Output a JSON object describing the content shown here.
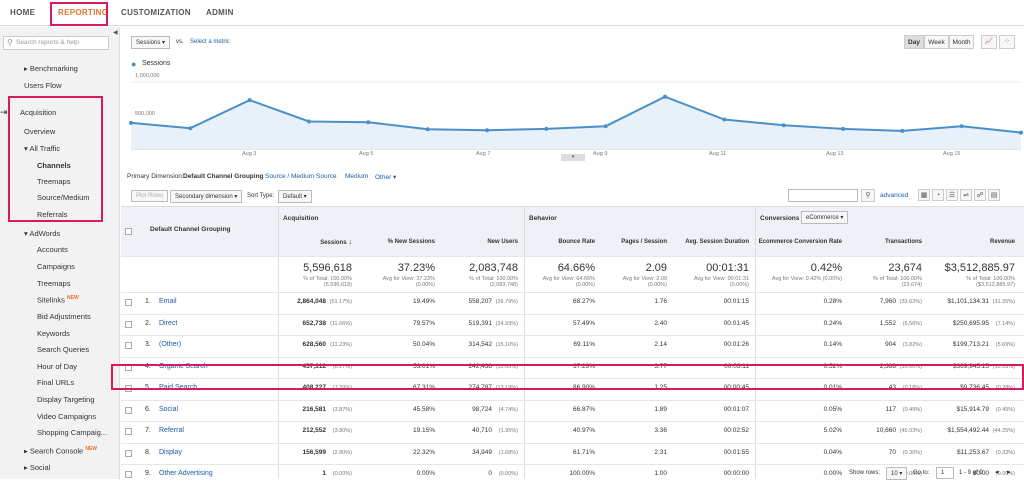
{
  "nav": {
    "home": "HOME",
    "reporting": "REPORTING",
    "customization": "CUSTOMIZATION",
    "admin": "ADMIN"
  },
  "sidebar": {
    "search_placeholder": "Search reports & help",
    "items": [
      "Benchmarking",
      "Users Flow",
      "Acquisition",
      "Overview",
      "All Traffic",
      "Channels",
      "Treemaps",
      "Source/Medium",
      "Referrals",
      "AdWords",
      "Accounts",
      "Campaigns",
      "Treemaps",
      "Sitelinks",
      "Bid Adjustments",
      "Keywords",
      "Search Queries",
      "Hour of Day",
      "Final URLs",
      "Display Targeting",
      "Video Campaigns",
      "Shopping Campaig...",
      "Search Console",
      "Social"
    ],
    "new_badge": "NEW"
  },
  "chart": {
    "metric_select": "Sessions",
    "vs": "vs.",
    "select_metric": "Select a metric",
    "day": "Day",
    "week": "Week",
    "month": "Month",
    "legend": "Sessions",
    "y_top": "1,000,000",
    "y_mid": "500,000",
    "x_labels": [
      "Aug 3",
      "Aug 5",
      "Aug 7",
      "Aug 9",
      "Aug 11",
      "Aug 13",
      "Aug 15"
    ]
  },
  "chart_data": {
    "type": "area",
    "series": [
      {
        "name": "Sessions",
        "values": [
          390000,
          310000,
          730000,
          410000,
          400000,
          295000,
          280000,
          300000,
          340000,
          780000,
          440000,
          355000,
          300000,
          270000,
          340000,
          245000
        ]
      }
    ],
    "ylim": [
      0,
      1000000
    ],
    "x_ticks": [
      "Aug 3",
      "Aug 5",
      "Aug 7",
      "Aug 9",
      "Aug 11",
      "Aug 13",
      "Aug 15"
    ]
  },
  "dims": {
    "label": "Primary Dimension:",
    "active": "Default Channel Grouping",
    "others": [
      "Source / Medium",
      "Source",
      "Medium",
      "Other ▾"
    ]
  },
  "controls": {
    "plot_rows": "Plot Rows",
    "secondary": "Secondary dimension ▾",
    "sort_type": "Sort Type:",
    "default": "Default ▾",
    "advanced": "advanced"
  },
  "table": {
    "col_group": "Default Channel Grouping",
    "acq": "Acquisition",
    "beh": "Behavior",
    "conv": "Conversions",
    "conv_sel": "eCommerce ▾",
    "headers": [
      "Sessions",
      "% New Sessions",
      "New Users",
      "Bounce Rate",
      "Pages / Session",
      "Avg. Session Duration",
      "Ecommerce Conversion Rate",
      "Transactions",
      "Revenue"
    ],
    "totals": [
      {
        "v": "5,596,618",
        "s": "% of Total: 100.00% (5,596,618)"
      },
      {
        "v": "37.23%",
        "s": "Avg for View: 37.23% (0.00%)"
      },
      {
        "v": "2,083,748",
        "s": "% of Total: 100.00% (2,083,748)"
      },
      {
        "v": "64.66%",
        "s": "Avg for View: 64.66% (0.00%)"
      },
      {
        "v": "2.09",
        "s": "Avg for View: 2.09 (0.00%)"
      },
      {
        "v": "00:01:31",
        "s": "Avg for View: 00:01:31 (0.00%)"
      },
      {
        "v": "0.42%",
        "s": "Avg for View: 0.42% (0.00%)"
      },
      {
        "v": "23,674",
        "s": "% of Total: 100.00% (23,674)"
      },
      {
        "v": "$3,512,885.97",
        "s": "% of Total: 100.00% ($3,512,885.97)"
      }
    ],
    "rows": [
      {
        "n": "1.",
        "ch": "Email",
        "c": [
          "2,864,048",
          "19.49%",
          "558,207",
          "68.27%",
          "1.76",
          "00:01:15",
          "0.28%",
          "7,960",
          "$1,101,134.31"
        ],
        "p": [
          "(51.17%)",
          "",
          "(26.79%)",
          "",
          "",
          "",
          "",
          "(33.62%)",
          "(31.35%)"
        ]
      },
      {
        "n": "2.",
        "ch": "Direct",
        "c": [
          "652,738",
          "79.57%",
          "519,391",
          "57.49%",
          "2.40",
          "00:01:45",
          "0.24%",
          "1,552",
          "$250,695.95"
        ],
        "p": [
          "(11.66%)",
          "",
          "(24.93%)",
          "",
          "",
          "",
          "",
          "(6.56%)",
          "(7.14%)"
        ]
      },
      {
        "n": "3.",
        "ch": "(Other)",
        "c": [
          "628,560",
          "50.04%",
          "314,542",
          "69.11%",
          "2.14",
          "00:01:26",
          "0.14%",
          "904",
          "$199,713.21"
        ],
        "p": [
          "(11.23%)",
          "",
          "(15.10%)",
          "",
          "",
          "",
          "",
          "(3.82%)",
          "(5.69%)"
        ]
      },
      {
        "n": "4.",
        "ch": "Organic Search",
        "c": [
          "457,312",
          "53.01%",
          "242,438",
          "37.29%",
          "3.77",
          "00:03:11",
          "0.52%",
          "2,368",
          "$369,945.15"
        ],
        "p": [
          "(8.17%)",
          "",
          "(11.63%)",
          "",
          "",
          "",
          "",
          "(10.00%)",
          "(10.53%)"
        ]
      },
      {
        "n": "5.",
        "ch": "Paid Search",
        "c": [
          "408,227",
          "67.31%",
          "274,787",
          "86.90%",
          "1.25",
          "00:00:45",
          "0.01%",
          "43",
          "$9,736.45"
        ],
        "p": [
          "(7.29%)",
          "",
          "(13.19%)",
          "",
          "",
          "",
          "",
          "(0.18%)",
          "(0.28%)"
        ]
      },
      {
        "n": "6.",
        "ch": "Social",
        "c": [
          "216,581",
          "45.58%",
          "98,724",
          "66.87%",
          "1.89",
          "00:01:07",
          "0.05%",
          "117",
          "$15,914.79"
        ],
        "p": [
          "(3.87%)",
          "",
          "(4.74%)",
          "",
          "",
          "",
          "",
          "(0.49%)",
          "(0.45%)"
        ]
      },
      {
        "n": "7.",
        "ch": "Referral",
        "c": [
          "212,552",
          "19.15%",
          "40,710",
          "40.97%",
          "3.36",
          "00:02:52",
          "5.02%",
          "10,660",
          "$1,554,492.44"
        ],
        "p": [
          "(3.80%)",
          "",
          "(1.95%)",
          "",
          "",
          "",
          "",
          "(45.03%)",
          "(44.25%)"
        ]
      },
      {
        "n": "8.",
        "ch": "Display",
        "c": [
          "156,599",
          "22.32%",
          "34,949",
          "61.71%",
          "2.31",
          "00:01:55",
          "0.04%",
          "70",
          "$11,253.67"
        ],
        "p": [
          "(2.80%)",
          "",
          "(1.68%)",
          "",
          "",
          "",
          "",
          "(0.30%)",
          "(0.32%)"
        ]
      },
      {
        "n": "9.",
        "ch": "Other Advertising",
        "c": [
          "1",
          "0.00%",
          "0",
          "100.00%",
          "1.00",
          "00:00:00",
          "0.00%",
          "0",
          "$0.00"
        ],
        "p": [
          "(0.00%)",
          "",
          "(0.00%)",
          "",
          "",
          "",
          "",
          "(0.00%)",
          "(0.00%)"
        ]
      }
    ]
  },
  "pager": {
    "show_rows": "Show rows:",
    "rows": "10",
    "goto": "Go to:",
    "page": "1",
    "range": "1 - 9 of 9"
  }
}
